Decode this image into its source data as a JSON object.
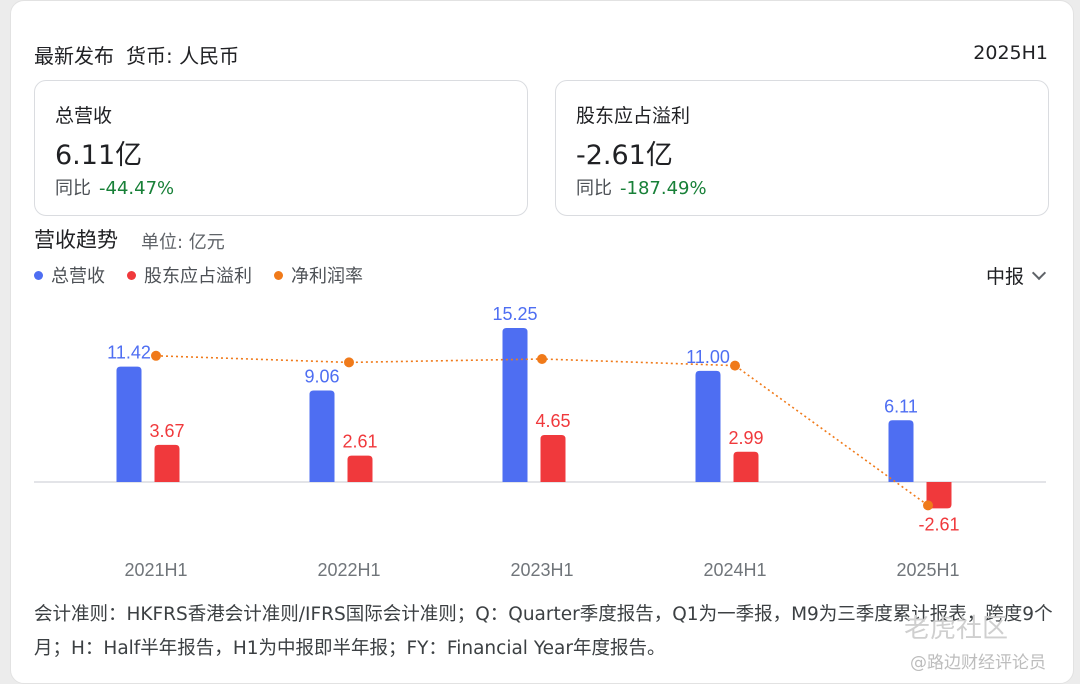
{
  "header": {
    "title": "最新发布",
    "currency": "货币: 人民币",
    "period": "2025H1"
  },
  "metrics": [
    {
      "label": "总营收",
      "value": "6.11亿",
      "yoy_label": "同比",
      "yoy": "-44.47%"
    },
    {
      "label": "股东应占溢利",
      "value": "-2.61亿",
      "yoy_label": "同比",
      "yoy": "-187.49%"
    }
  ],
  "section": {
    "title": "营收趋势",
    "unit": "单位: 亿元"
  },
  "period_selector": {
    "label": "中报"
  },
  "colors": {
    "revenue": "#4e6ef2",
    "profit": "#f0393c",
    "margin": "#f07a1a",
    "yoy_text": "#188038"
  },
  "chart_data": {
    "type": "bar",
    "categories": [
      "2021H1",
      "2022H1",
      "2023H1",
      "2024H1",
      "2025H1"
    ],
    "series": [
      {
        "name": "总营收",
        "values": [
          11.42,
          9.06,
          15.25,
          11.0,
          6.11
        ],
        "labels": [
          "11.42",
          "9.06",
          "15.25",
          "11.00",
          "6.11"
        ]
      },
      {
        "name": "股东应占溢利",
        "values": [
          3.67,
          2.61,
          4.65,
          2.99,
          -2.61
        ],
        "labels": [
          "3.67",
          "2.61",
          "4.65",
          "2.99",
          "-2.61"
        ]
      },
      {
        "name": "净利润率",
        "type": "line",
        "values": [
          32.1,
          28.8,
          30.5,
          27.2,
          -42.7
        ]
      }
    ],
    "legend_position": "top-left",
    "grid": false
  },
  "footnote": "会计准则：HKFRS香港会计准则/IFRS国际会计准则；Q：Quarter季度报告，Q1为一季报，M9为三季度累计报表，跨度9个月；H：Half半年报告，H1为中报即半年报；FY：Financial Year年度报告。",
  "watermark": {
    "line1": "老虎社区",
    "line2": "@路边财经评论员"
  }
}
